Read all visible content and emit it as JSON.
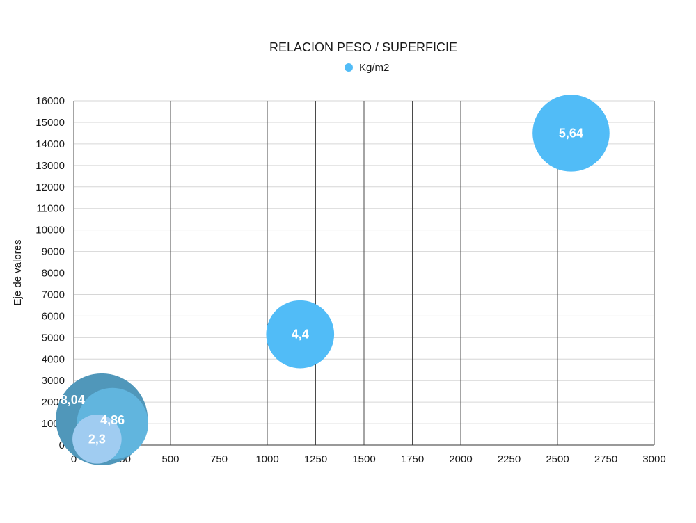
{
  "chart_data": {
    "type": "bubble",
    "title": "RELACION PESO / SUPERFICIE",
    "xlabel": "",
    "ylabel": "Eje de valores",
    "xlim": [
      0,
      3000
    ],
    "ylim": [
      0,
      16000
    ],
    "x_ticks": [
      0,
      250,
      500,
      750,
      1000,
      1250,
      1500,
      1750,
      2000,
      2250,
      2500,
      2750,
      3000
    ],
    "y_ticks": [
      0,
      1000,
      2000,
      3000,
      4000,
      5000,
      6000,
      7000,
      8000,
      9000,
      10000,
      11000,
      12000,
      13000,
      14000,
      15000,
      16000
    ],
    "grid": {
      "x": true,
      "y": true
    },
    "legend": {
      "position": "top",
      "entries": [
        "Kg/m2"
      ]
    },
    "series": [
      {
        "name": "Kg/m2",
        "points": [
          {
            "x": 145,
            "y": 1200,
            "size": 8.04,
            "label": "8,04",
            "color": "#5097BA"
          },
          {
            "x": 200,
            "y": 1000,
            "size": 4.86,
            "label": "4,86",
            "color": "#61B5DE"
          },
          {
            "x": 120,
            "y": 280,
            "size": 2.3,
            "label": "2,3",
            "color": "#A0CCF1"
          },
          {
            "x": 1170,
            "y": 5150,
            "size": 4.4,
            "label": "4,4",
            "color": "#51BCF7"
          },
          {
            "x": 2570,
            "y": 14500,
            "size": 5.64,
            "label": "5,64",
            "color": "#51BCF7"
          }
        ]
      }
    ],
    "legend_color": "#51BCF7"
  }
}
